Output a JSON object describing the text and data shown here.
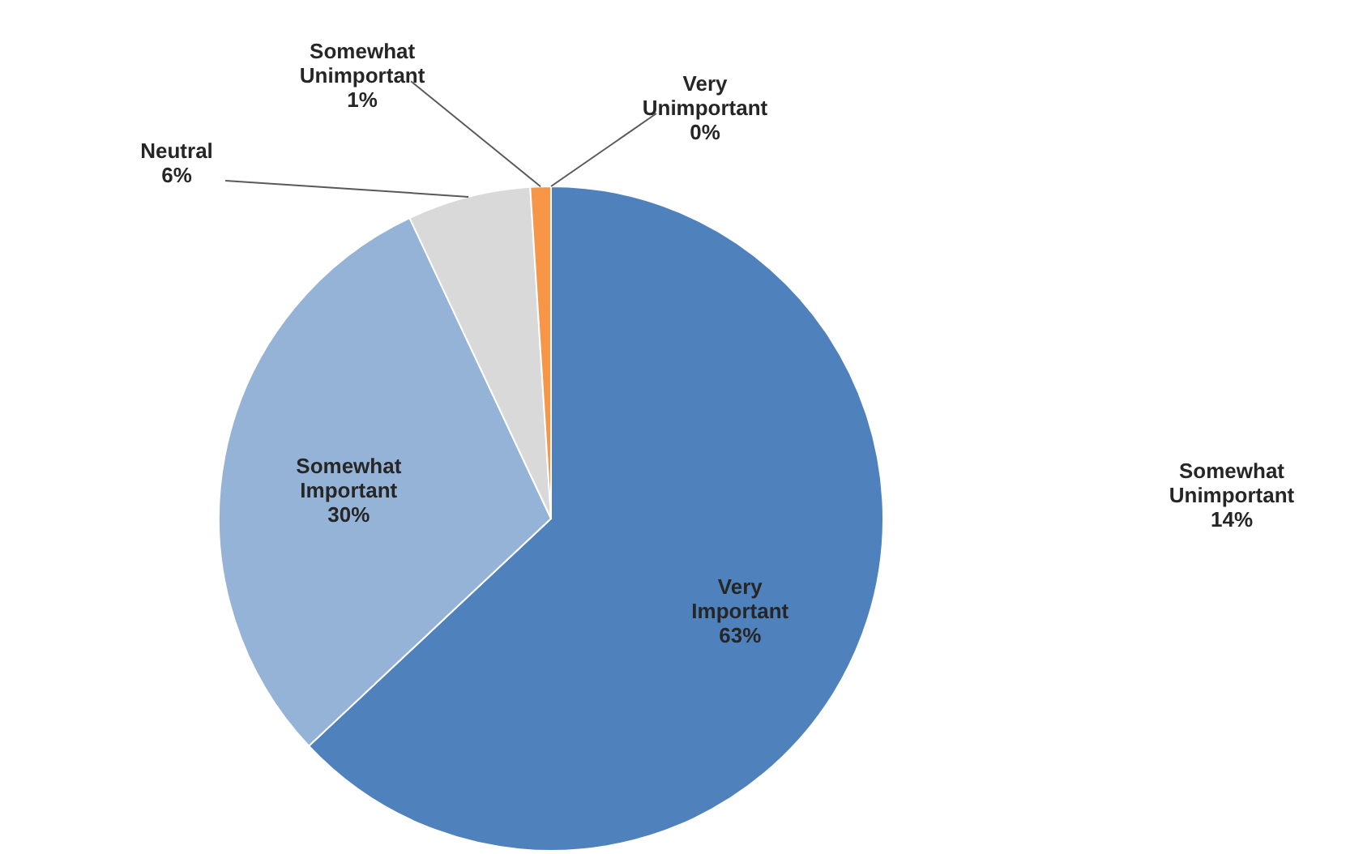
{
  "chart_data": {
    "type": "pie",
    "categories": [
      "Very Important",
      "Somewhat Important",
      "Neutral",
      "Somewhat Unimportant",
      "Very Unimportant"
    ],
    "values": [
      63,
      30,
      6,
      1,
      0
    ],
    "colors": [
      "#4f81bd",
      "#95b3d7",
      "#d9d9d9",
      "#f79646",
      "#e46c0a"
    ],
    "value_labels": [
      "63%",
      "30%",
      "6%",
      "1%",
      "0%"
    ],
    "legend": false,
    "annotations": [
      "Somewhat Unimportant 14%"
    ]
  }
}
